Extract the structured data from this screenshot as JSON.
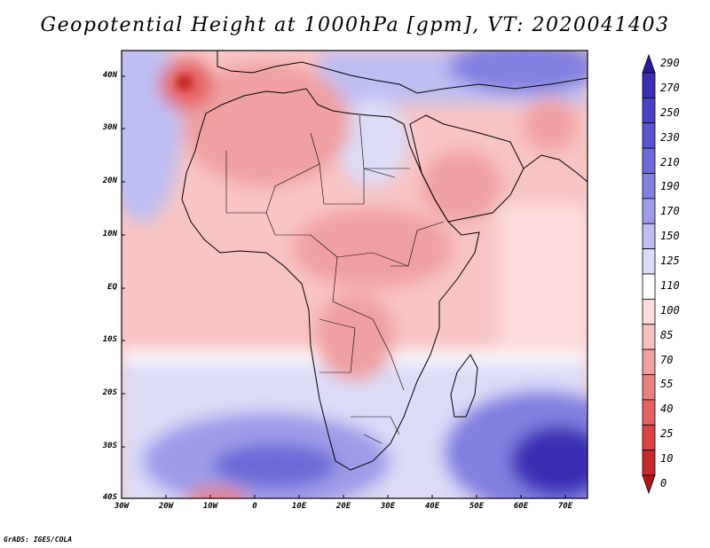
{
  "title": "Geopotential Height at 1000hPa [gpm], VT: 2020041403",
  "footer": "GrADS: IGES/COLA",
  "map": {
    "lat_labels": [
      "40N",
      "30N",
      "20N",
      "10N",
      "EQ",
      "10S",
      "20S",
      "30S",
      "40S"
    ],
    "lon_labels": [
      "30W",
      "20W",
      "10W",
      "0",
      "10E",
      "20E",
      "30E",
      "40E",
      "50E",
      "60E",
      "70E"
    ]
  },
  "colorbar": {
    "levels": [
      "290",
      "270",
      "250",
      "230",
      "210",
      "190",
      "170",
      "150",
      "125",
      "110",
      "100",
      "85",
      "70",
      "55",
      "40",
      "25",
      "10",
      "0"
    ],
    "colors": [
      "#2a1aa0",
      "#3b2fb5",
      "#4a42c4",
      "#5a56d0",
      "#6c6ad8",
      "#8280e0",
      "#9e9ce8",
      "#bebef2",
      "#dcdcf8",
      "#ffffff",
      "#fcdcdc",
      "#f6c0c0",
      "#f0a0a0",
      "#ea8080",
      "#e46262",
      "#dc4444",
      "#c82a2a",
      "#b01818"
    ]
  },
  "chart_data": {
    "type": "heatmap",
    "title": "Geopotential Height at 1000hPa [gpm], VT: 2020041403",
    "units": "gpm",
    "valid_time": "2020041403",
    "lon_range": [
      -30,
      75
    ],
    "lat_range": [
      -40,
      45
    ],
    "contour_levels": [
      0,
      10,
      25,
      40,
      55,
      70,
      85,
      100,
      110,
      125,
      150,
      170,
      190,
      210,
      230,
      250,
      270,
      290
    ]
  }
}
